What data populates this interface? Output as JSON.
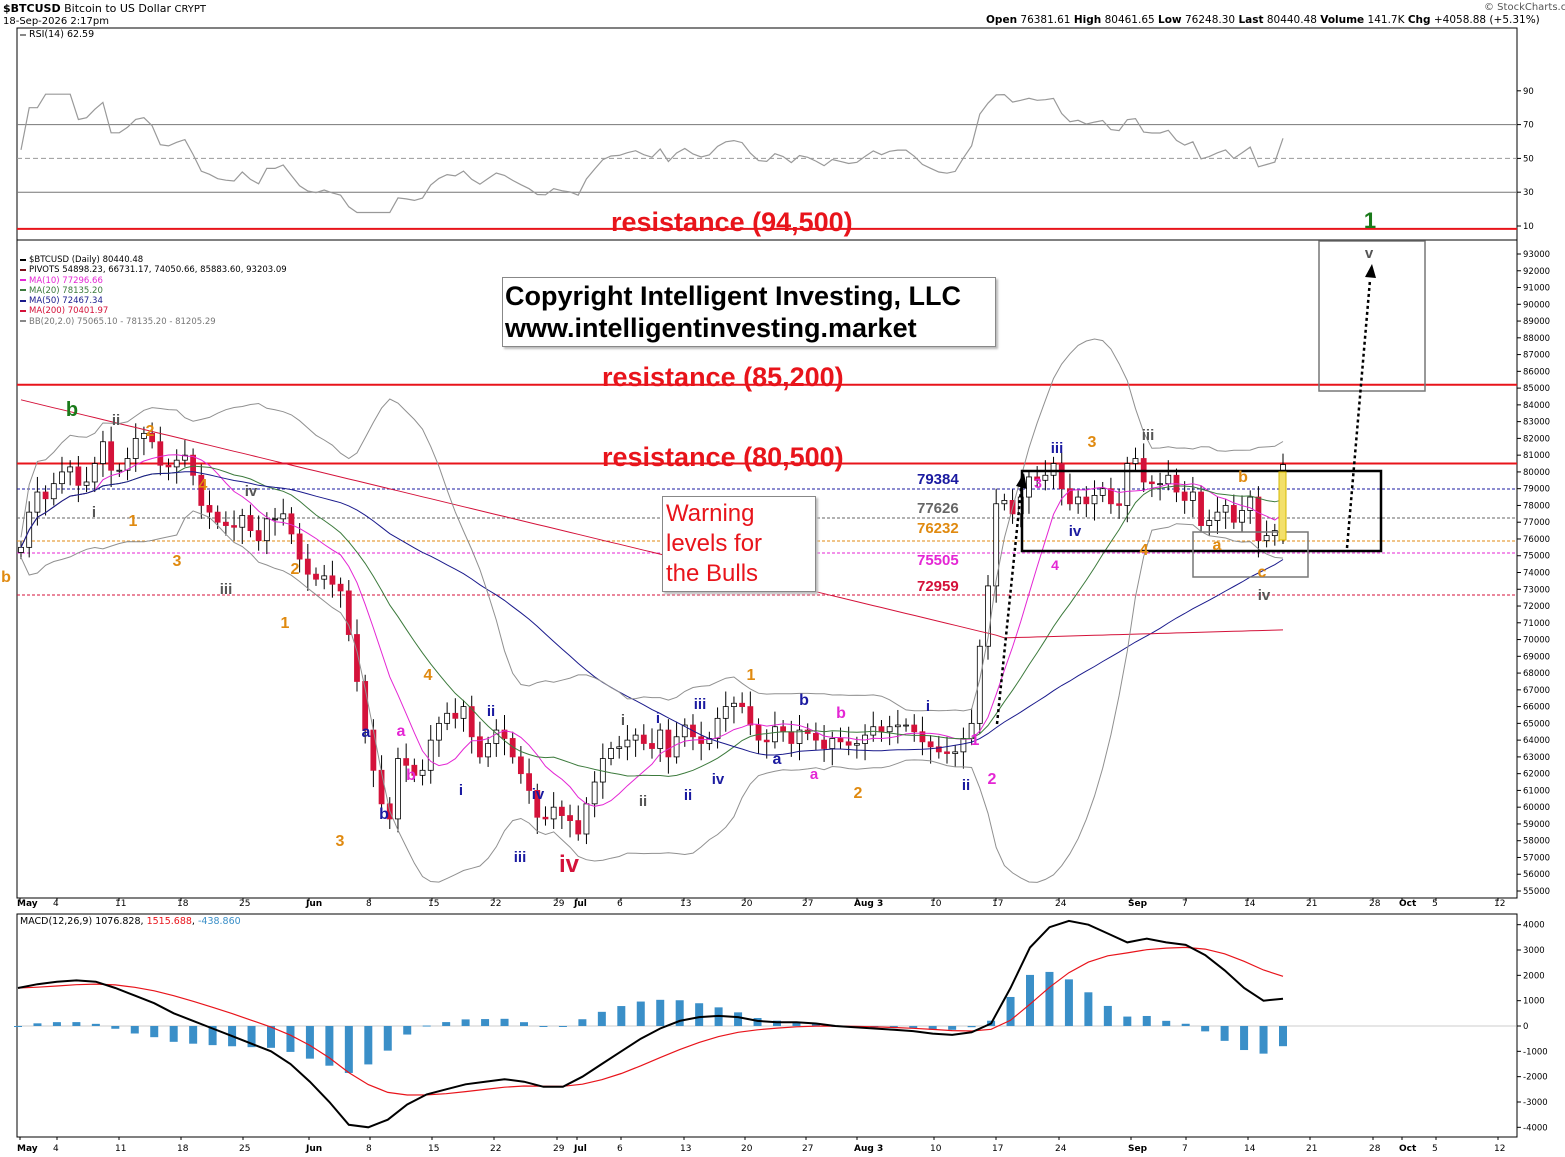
{
  "header": {
    "symbol": "$BTCUSD",
    "name": "Bitcoin to US Dollar",
    "exchange": "CRYPT",
    "date": "18-Sep-2026 2:17pm",
    "open_label": "Open",
    "open": "76381.61",
    "high_label": "High",
    "high": "80461.65",
    "low_label": "Low",
    "low": "76248.30",
    "last_label": "Last",
    "last": "80440.48",
    "volume_label": "Volume",
    "volume": "141.7K",
    "chg_label": "Chg",
    "chg": "+4058.88 (+5.31%)",
    "brand": "© StockCharts.com"
  },
  "legend": {
    "main": "$BTCUSD (Daily) 80440.48",
    "pivots": "PIVOTS 54898.23, 66731.17, 74050.66, 85883.60, 93203.09",
    "ma10": "MA(10) 77296.66",
    "ma20": "MA(20) 78135.20",
    "ma50": "MA(50) 72467.34",
    "ma200": "MA(200) 70401.97",
    "bb": "BB(20,2.0) 75065.10 - 78135.20 - 81205.29",
    "rsi": "RSI(14) 62.59",
    "macd_label": "MACD(12,26,9)",
    "macd_v1": "1076.828",
    "macd_v2": "1515.688",
    "macd_v3": "-438.860"
  },
  "colors": {
    "up": "#ffffff",
    "down": "#d4123a",
    "ma10": "#e426d4",
    "ma20": "#3c7a3c",
    "ma50": "#1a1a8c",
    "ma200": "#d4123a",
    "bb": "#909090",
    "resistance": "#e8141b",
    "macd": "#000000",
    "signal": "#e8141b",
    "hist": "#3a8fc8"
  },
  "annotations": {
    "copyright_line1": "Copyright Intelligent Investing, LLC",
    "copyright_line2": "www.intelligentinvesting.market",
    "warning_line1": "Warning",
    "warning_line2": "levels for",
    "warning_line3": "the Bulls",
    "res1": "resistance (94,500)",
    "res2": "resistance (85,200)",
    "res3": "resistance (80,500)"
  },
  "chart_data": {
    "type": "candlestick",
    "x_axis_ticks": [
      "May",
      "4",
      "11",
      "18",
      "25",
      "Jun",
      "8",
      "15",
      "22",
      "29",
      "Jul",
      "6",
      "13",
      "20",
      "27",
      "Aug 3",
      "10",
      "17",
      "24",
      "Sep",
      "7",
      "14",
      "21",
      "28",
      "Oct",
      "5",
      "12"
    ],
    "price_ylim": [
      55000,
      93000
    ],
    "price_ticks": [
      55000,
      56000,
      57000,
      58000,
      59000,
      60000,
      61000,
      62000,
      63000,
      64000,
      65000,
      66000,
      67000,
      68000,
      69000,
      70000,
      71000,
      72000,
      73000,
      74000,
      75000,
      76000,
      77000,
      78000,
      79000,
      80000,
      81000,
      82000,
      83000,
      84000,
      85000,
      86000,
      87000,
      88000,
      89000,
      90000,
      91000,
      92000,
      93000
    ],
    "rsi_ticks": [
      10,
      30,
      50,
      70,
      90
    ],
    "macd_ticks": [
      -4000,
      -3000,
      -2000,
      -1000,
      0,
      1000,
      2000,
      3000,
      4000
    ],
    "resistance_levels": [
      94500,
      85200,
      80500
    ],
    "warning_levels": [
      {
        "value": "79384",
        "color": "#1a1aa0"
      },
      {
        "value": "77626",
        "color": "#666666"
      },
      {
        "value": "76232",
        "color": "#e08a10"
      },
      {
        "value": "75505",
        "color": "#e426d4"
      },
      {
        "value": "72959",
        "color": "#d4123a"
      }
    ],
    "close": [
      75500,
      77600,
      78800,
      78400,
      79300,
      80000,
      80300,
      79200,
      79400,
      80500,
      81800,
      80100,
      80100,
      80800,
      82000,
      82300,
      81800,
      80400,
      80300,
      80700,
      81000,
      79800,
      78000,
      77600,
      77000,
      76800,
      76700,
      77400,
      76500,
      75900,
      77200,
      77200,
      77500,
      76300,
      74800,
      73900,
      73600,
      73800,
      73300,
      72900,
      70300,
      67500,
      64600,
      62200,
      60200,
      59300,
      62900,
      62500,
      61900,
      62200,
      64000,
      65000,
      65600,
      65300,
      66000,
      64200,
      63000,
      63800,
      64600,
      64100,
      63000,
      62000,
      61000,
      59400,
      59300,
      60000,
      59500,
      59200,
      58400,
      60200,
      61500,
      62900,
      63500,
      63600,
      64000,
      64300,
      63800,
      63500,
      64600,
      63000,
      64200,
      64900,
      64200,
      63800,
      64100,
      65300,
      66000,
      66200,
      66000,
      64900,
      64000,
      63900,
      64800,
      64500,
      63800,
      64600,
      64400,
      64000,
      63500,
      64100,
      63900,
      63700,
      63800,
      64300,
      64800,
      64500,
      64800,
      64900,
      64900,
      64500,
      63900,
      63600,
      63300,
      63200,
      63300,
      64100,
      65000,
      69600,
      73200,
      78100,
      78300,
      77500,
      78500,
      79700,
      79500,
      79800,
      80500,
      79000,
      78100,
      78500,
      78100,
      78600,
      79000,
      78100,
      78000,
      80500,
      80800,
      79400,
      79300,
      79300,
      79800,
      78800,
      78300,
      78800,
      76800,
      77100,
      77600,
      78000,
      77000,
      77700,
      78500,
      75900,
      76200,
      76500,
      80440
    ],
    "macd": [
      1500,
      1650,
      1750,
      1800,
      1750,
      1500,
      1200,
      900,
      500,
      200,
      -100,
      -400,
      -700,
      -1000,
      -1500,
      -2200,
      -3000,
      -3900,
      -4000,
      -3700,
      -3100,
      -2700,
      -2500,
      -2300,
      -2200,
      -2100,
      -2200,
      -2400,
      -2400,
      -2000,
      -1500,
      -1000,
      -500,
      -100,
      200,
      350,
      400,
      350,
      200,
      150,
      150,
      100,
      0,
      -50,
      -100,
      -150,
      -200,
      -300,
      -350,
      -250,
      100,
      1500,
      3100,
      3900,
      4150,
      4000,
      3650,
      3300,
      3450,
      3300,
      3200,
      2800,
      2200,
      1500,
      1000,
      1077
    ]
  }
}
